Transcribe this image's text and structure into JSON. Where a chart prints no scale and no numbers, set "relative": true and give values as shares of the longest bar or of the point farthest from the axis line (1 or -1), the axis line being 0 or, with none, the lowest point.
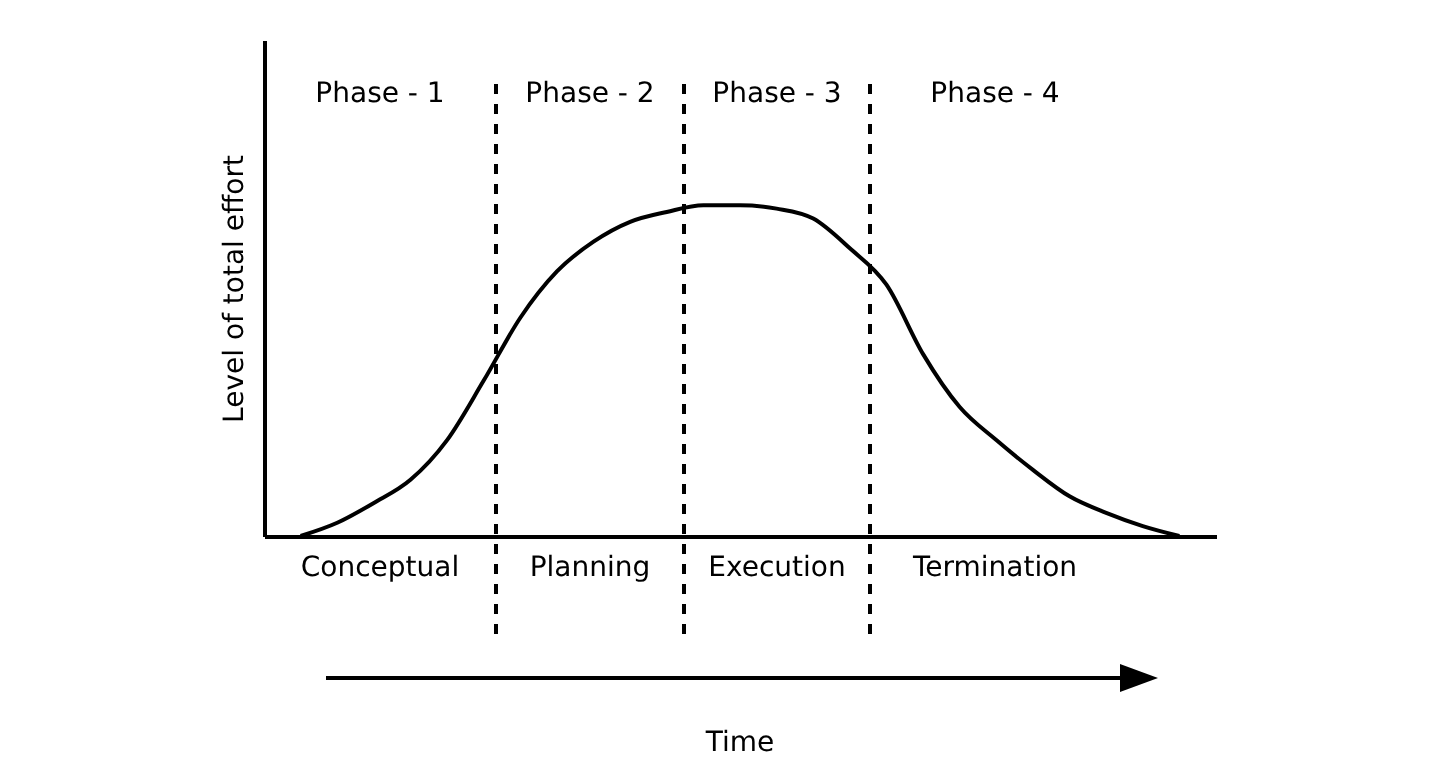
{
  "chart_data": {
    "type": "line",
    "relative": true,
    "ylabel": "Level of total effort",
    "grid": false,
    "categories": [
      null,
      null,
      null,
      null,
      null,
      null,
      null,
      null,
      null,
      null,
      null,
      null,
      null,
      null,
      null,
      null,
      null,
      null,
      null,
      null,
      null,
      null,
      null,
      null,
      null
    ],
    "series": [
      {
        "color": "#000000",
        "values": [
          0,
          0.04,
          0.1,
          0.17,
          0.29,
          0.47,
          0.66,
          0.8,
          0.89,
          0.95,
          0.98,
          1,
          1,
          0.99,
          0.96,
          0.87,
          0.76,
          0.55,
          0.39,
          0.29,
          0.2,
          0.12,
          0.07,
          0.03,
          0
        ]
      }
    ],
    "annotations": [
      "Phase - 1",
      "Phase - 2",
      "Phase - 3",
      "Phase - 4",
      "Conceptual",
      "Planning",
      "Execution",
      "Termination",
      "Time"
    ]
  }
}
